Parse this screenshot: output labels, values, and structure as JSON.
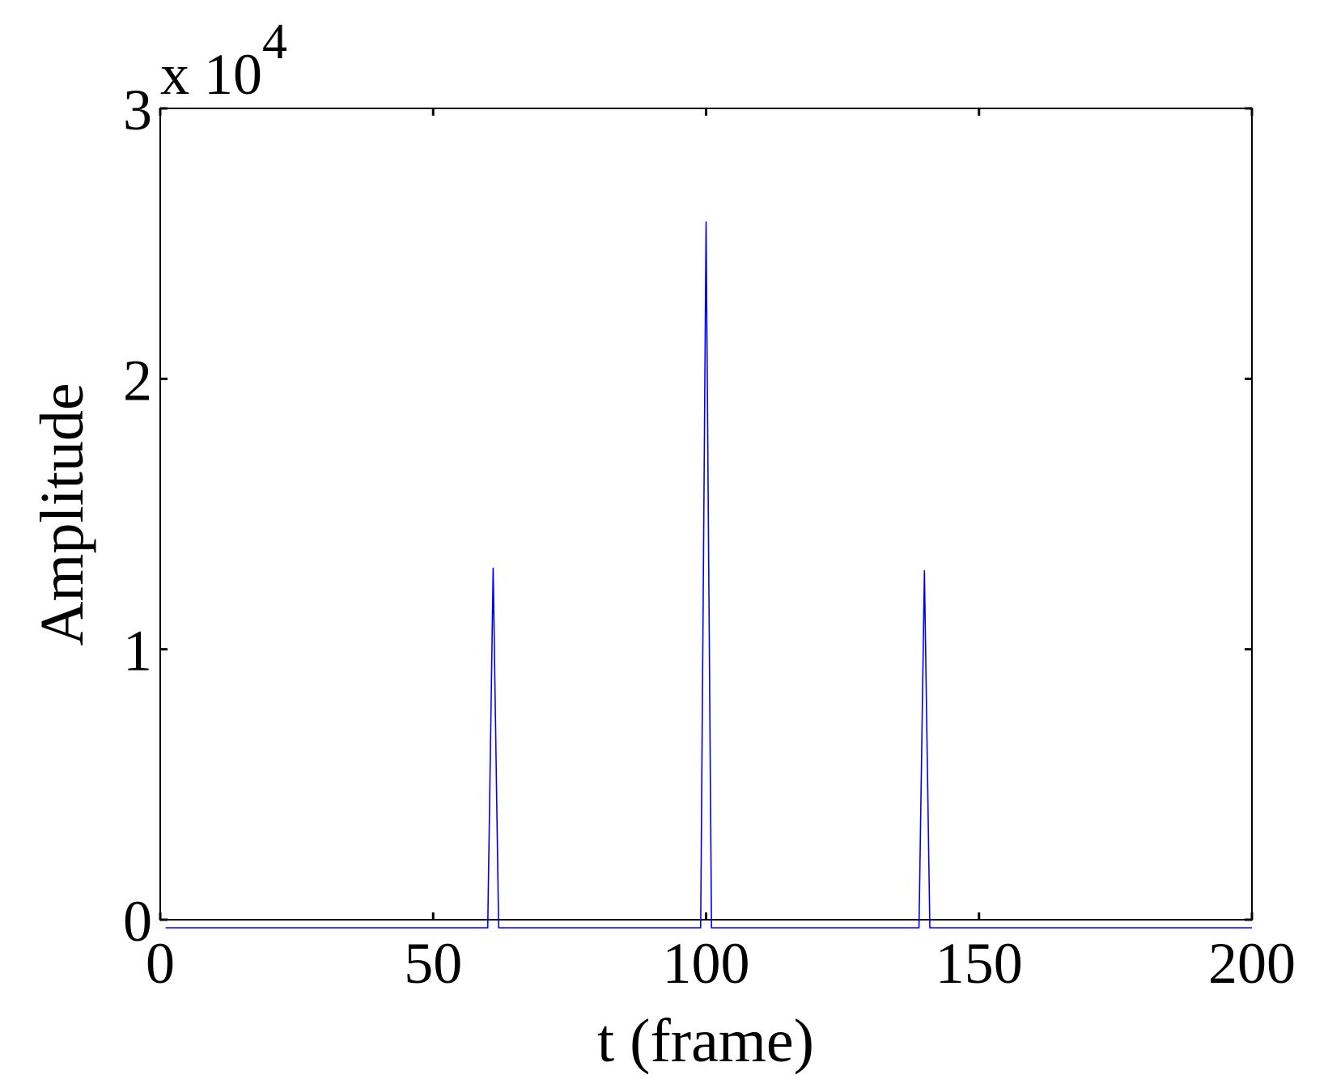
{
  "chart_data": {
    "type": "line",
    "title": "",
    "xlabel": "t (frame)",
    "ylabel": "Amplitude",
    "xlim": [
      0,
      200
    ],
    "ylim": [
      0,
      30000
    ],
    "xticks": [
      0,
      50,
      100,
      150,
      200
    ],
    "xtick_labels": [
      "0",
      "50",
      "100",
      "150",
      "200"
    ],
    "yticks": [
      0,
      10000,
      20000,
      30000
    ],
    "ytick_labels": [
      "0",
      "1",
      "2",
      "3"
    ],
    "y_multiplier": {
      "base": "x 10",
      "exponent": "4"
    },
    "grid": false,
    "line_color": "#0000ff",
    "series": [
      {
        "x": [
          1,
          60,
          61,
          62,
          99,
          100,
          101,
          139,
          140,
          141,
          200
        ],
        "y": [
          -300,
          -300,
          13000,
          -300,
          -300,
          25800,
          -300,
          -300,
          12900,
          -300,
          -300
        ]
      }
    ]
  }
}
